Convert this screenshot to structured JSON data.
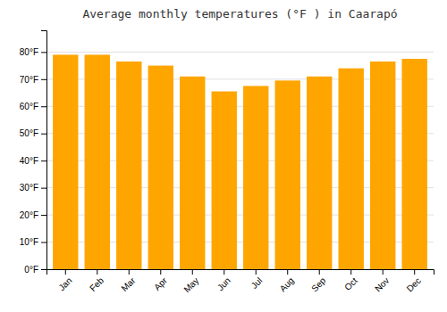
{
  "chart_data": {
    "type": "bar",
    "title": "Average monthly temperatures (°F ) in Caarapó",
    "categories": [
      "Jan",
      "Feb",
      "Mar",
      "Apr",
      "May",
      "Jun",
      "Jul",
      "Aug",
      "Sep",
      "Oct",
      "Nov",
      "Dec"
    ],
    "values": [
      79,
      79,
      76.5,
      75,
      71,
      65.5,
      67.5,
      69.5,
      71,
      74,
      76.5,
      77.5
    ],
    "color": "#FFA500",
    "ylim": [
      0,
      88
    ],
    "yticks": [
      {
        "value": 0,
        "label": "0°F"
      },
      {
        "value": 10,
        "label": "10°F"
      },
      {
        "value": 20,
        "label": "20°F"
      },
      {
        "value": 30,
        "label": "30°F"
      },
      {
        "value": 40,
        "label": "40°F"
      },
      {
        "value": 50,
        "label": "50°F"
      },
      {
        "value": 60,
        "label": "60°F"
      },
      {
        "value": 70,
        "label": "70°F"
      },
      {
        "value": 80,
        "label": "80°F"
      }
    ],
    "grid": true
  }
}
